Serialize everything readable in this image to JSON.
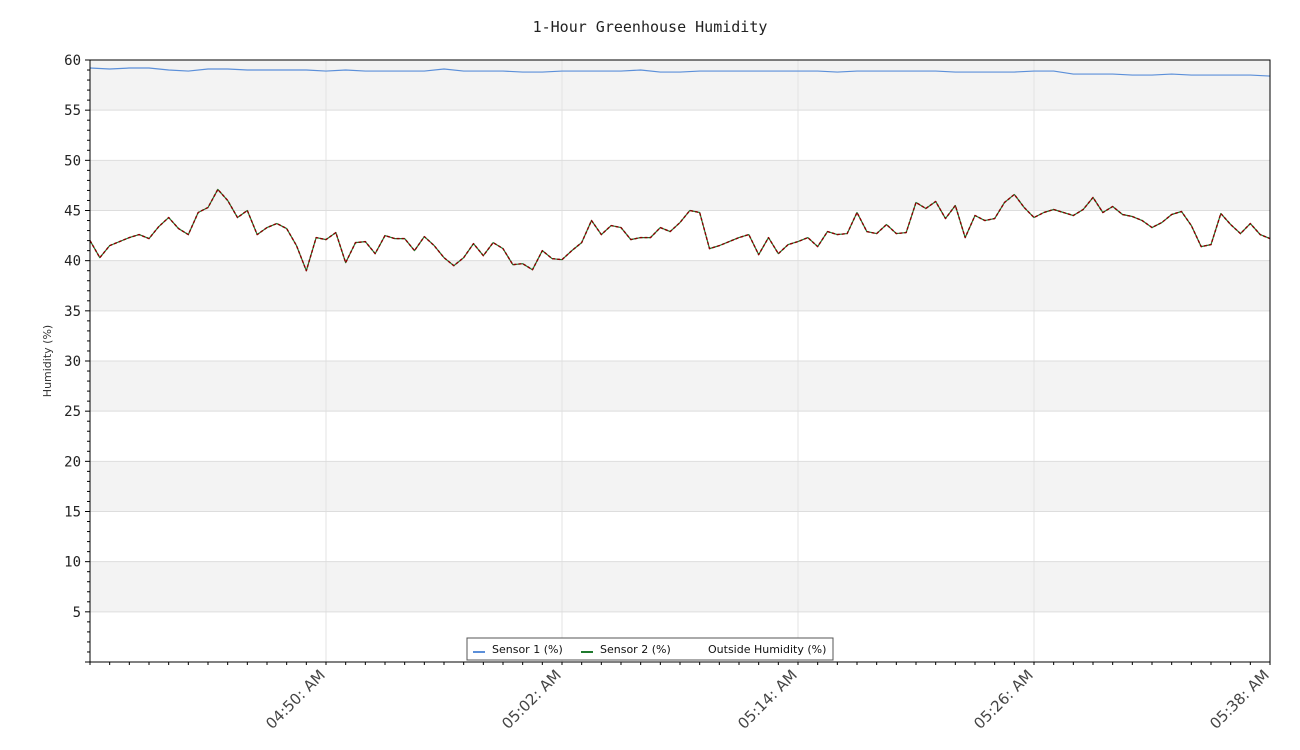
{
  "chart_data": {
    "type": "line",
    "title": "1-Hour Greenhouse Humidity",
    "ylabel": "Humidity (%)",
    "xlabel": "",
    "ylim": [
      0,
      60
    ],
    "y_ticks": [
      5,
      10,
      15,
      20,
      25,
      30,
      35,
      40,
      45,
      50,
      55,
      60
    ],
    "x_ticks": [
      "04:50: AM",
      "05:02: AM",
      "05:14: AM",
      "05:26: AM",
      "05:38: AM"
    ],
    "x_range_minutes": [
      0,
      60
    ],
    "x_tick_minutes": [
      12,
      24,
      36,
      48,
      60
    ],
    "grid": true,
    "banded_background": true,
    "legend_position": "bottom-center",
    "series": [
      {
        "name": "Sensor 1 (%)",
        "color": "#5b8fd9",
        "style": "solid",
        "points": [
          [
            0,
            59.2
          ],
          [
            1,
            59.1
          ],
          [
            2,
            59.2
          ],
          [
            3,
            59.2
          ],
          [
            4,
            59.0
          ],
          [
            5,
            58.9
          ],
          [
            6,
            59.1
          ],
          [
            7,
            59.1
          ],
          [
            8,
            59.0
          ],
          [
            9,
            59.0
          ],
          [
            10,
            59.0
          ],
          [
            11,
            59.0
          ],
          [
            12,
            58.9
          ],
          [
            13,
            59.0
          ],
          [
            14,
            58.9
          ],
          [
            15,
            58.9
          ],
          [
            16,
            58.9
          ],
          [
            17,
            58.9
          ],
          [
            18,
            59.1
          ],
          [
            19,
            58.9
          ],
          [
            20,
            58.9
          ],
          [
            21,
            58.9
          ],
          [
            22,
            58.8
          ],
          [
            23,
            58.8
          ],
          [
            24,
            58.9
          ],
          [
            25,
            58.9
          ],
          [
            26,
            58.9
          ],
          [
            27,
            58.9
          ],
          [
            28,
            59.0
          ],
          [
            29,
            58.8
          ],
          [
            30,
            58.8
          ],
          [
            31,
            58.9
          ],
          [
            32,
            58.9
          ],
          [
            33,
            58.9
          ],
          [
            34,
            58.9
          ],
          [
            35,
            58.9
          ],
          [
            36,
            58.9
          ],
          [
            37,
            58.9
          ],
          [
            38,
            58.8
          ],
          [
            39,
            58.9
          ],
          [
            40,
            58.9
          ],
          [
            41,
            58.9
          ],
          [
            42,
            58.9
          ],
          [
            43,
            58.9
          ],
          [
            44,
            58.8
          ],
          [
            45,
            58.8
          ],
          [
            46,
            58.8
          ],
          [
            47,
            58.8
          ],
          [
            48,
            58.9
          ],
          [
            49,
            58.9
          ],
          [
            50,
            58.6
          ],
          [
            51,
            58.6
          ],
          [
            52,
            58.6
          ],
          [
            53,
            58.5
          ],
          [
            54,
            58.5
          ],
          [
            55,
            58.6
          ],
          [
            56,
            58.5
          ],
          [
            57,
            58.5
          ],
          [
            58,
            58.5
          ],
          [
            59,
            58.5
          ],
          [
            60,
            58.4
          ]
        ]
      },
      {
        "name": "Sensor 2 (%)",
        "color": "#1f7a2e",
        "style": "solid",
        "points": [
          [
            0,
            42.0
          ],
          [
            0.5,
            40.3
          ],
          [
            1,
            41.5
          ],
          [
            2,
            42.3
          ],
          [
            2.5,
            42.6
          ],
          [
            3,
            42.2
          ],
          [
            3.5,
            43.4
          ],
          [
            4,
            44.3
          ],
          [
            4.5,
            43.2
          ],
          [
            5,
            42.6
          ],
          [
            5.5,
            44.8
          ],
          [
            6,
            45.3
          ],
          [
            6.5,
            47.1
          ],
          [
            7,
            46.0
          ],
          [
            7.5,
            44.3
          ],
          [
            8,
            45.0
          ],
          [
            8.5,
            42.6
          ],
          [
            9,
            43.3
          ],
          [
            9.5,
            43.7
          ],
          [
            10,
            43.2
          ],
          [
            10.5,
            41.5
          ],
          [
            11,
            39.0
          ],
          [
            11.5,
            42.3
          ],
          [
            12,
            42.1
          ],
          [
            12.5,
            42.8
          ],
          [
            13,
            39.8
          ],
          [
            13.5,
            41.8
          ],
          [
            14,
            41.9
          ],
          [
            14.5,
            40.7
          ],
          [
            15,
            42.5
          ],
          [
            15.5,
            42.2
          ],
          [
            16,
            42.2
          ],
          [
            16.5,
            41.0
          ],
          [
            17,
            42.4
          ],
          [
            17.5,
            41.5
          ],
          [
            18,
            40.3
          ],
          [
            18.5,
            39.5
          ],
          [
            19,
            40.3
          ],
          [
            19.5,
            41.7
          ],
          [
            20,
            40.5
          ],
          [
            20.5,
            41.8
          ],
          [
            21,
            41.2
          ],
          [
            21.5,
            39.6
          ],
          [
            22,
            39.7
          ],
          [
            22.5,
            39.1
          ],
          [
            23,
            41.0
          ],
          [
            23.5,
            40.2
          ],
          [
            24,
            40.1
          ],
          [
            24.5,
            41.0
          ],
          [
            25,
            41.8
          ],
          [
            25.5,
            44.0
          ],
          [
            26,
            42.6
          ],
          [
            26.5,
            43.5
          ],
          [
            27,
            43.3
          ],
          [
            27.5,
            42.1
          ],
          [
            28,
            42.3
          ],
          [
            28.5,
            42.3
          ],
          [
            29,
            43.3
          ],
          [
            29.5,
            42.9
          ],
          [
            30,
            43.8
          ],
          [
            30.5,
            45.0
          ],
          [
            31,
            44.8
          ],
          [
            31.5,
            41.2
          ],
          [
            32,
            41.5
          ],
          [
            32.5,
            41.9
          ],
          [
            33,
            42.3
          ],
          [
            33.5,
            42.6
          ],
          [
            34,
            40.6
          ],
          [
            34.5,
            42.3
          ],
          [
            35,
            40.7
          ],
          [
            35.5,
            41.6
          ],
          [
            36,
            41.9
          ],
          [
            36.5,
            42.3
          ],
          [
            37,
            41.4
          ],
          [
            37.5,
            42.9
          ],
          [
            38,
            42.6
          ],
          [
            38.5,
            42.7
          ],
          [
            39,
            44.8
          ],
          [
            39.5,
            42.9
          ],
          [
            40,
            42.7
          ],
          [
            40.5,
            43.6
          ],
          [
            41,
            42.7
          ],
          [
            41.5,
            42.8
          ],
          [
            42,
            45.8
          ],
          [
            42.5,
            45.2
          ],
          [
            43,
            45.9
          ],
          [
            43.5,
            44.2
          ],
          [
            44,
            45.5
          ],
          [
            44.5,
            42.3
          ],
          [
            45,
            44.5
          ],
          [
            45.5,
            44.0
          ],
          [
            46,
            44.2
          ],
          [
            46.5,
            45.8
          ],
          [
            47,
            46.6
          ],
          [
            47.5,
            45.3
          ],
          [
            48,
            44.3
          ],
          [
            48.5,
            44.8
          ],
          [
            49,
            45.1
          ],
          [
            49.5,
            44.8
          ],
          [
            50,
            44.5
          ],
          [
            50.5,
            45.1
          ],
          [
            51,
            46.3
          ],
          [
            51.5,
            44.8
          ],
          [
            52,
            45.4
          ],
          [
            52.5,
            44.6
          ],
          [
            53,
            44.4
          ],
          [
            53.5,
            44.0
          ],
          [
            54,
            43.3
          ],
          [
            54.5,
            43.8
          ],
          [
            55,
            44.6
          ],
          [
            55.5,
            44.9
          ],
          [
            56,
            43.5
          ],
          [
            56.5,
            41.4
          ],
          [
            57,
            41.6
          ],
          [
            57.5,
            44.7
          ],
          [
            58,
            43.6
          ],
          [
            58.5,
            42.7
          ],
          [
            59,
            43.7
          ],
          [
            59.5,
            42.6
          ],
          [
            60,
            42.2
          ]
        ]
      },
      {
        "name": "Outside Humidity (%)",
        "color": "#8b0000",
        "style": "dashed",
        "same_as_series": 1
      }
    ]
  }
}
